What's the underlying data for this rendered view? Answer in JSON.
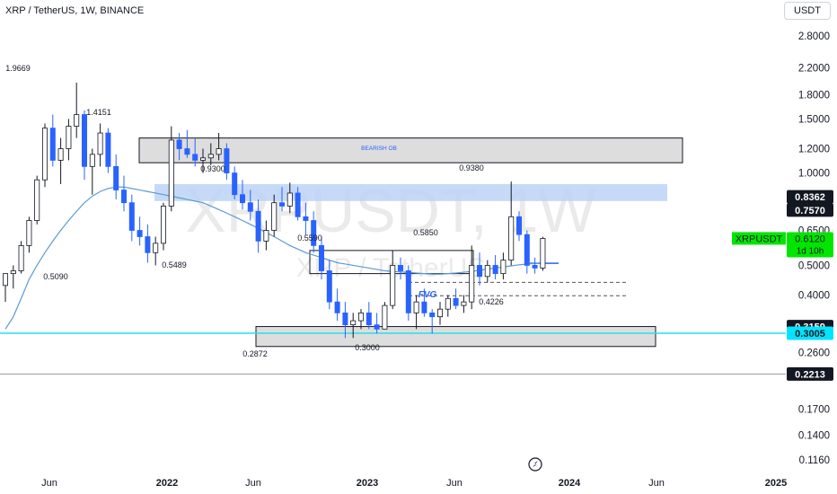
{
  "header": {
    "symbol_title": "XRP / TetherUS, 1W, BINANCE",
    "currency": "USDT"
  },
  "watermark": {
    "ticker": "XRPUSDT, 1W",
    "pair": "XRP / TetherUS"
  },
  "colors": {
    "up": "#ffffff",
    "down": "#2962ff",
    "wick": "#131722",
    "ma_line": "#5b9bd5",
    "zone_fill": "#d9d9d9",
    "blue_zone_fill": "#bcd4f7",
    "cyan_line": "#26e0e8",
    "gray_line": "#9598a1",
    "fvg_text": "#2962ff",
    "price_tag_dark": "#131722",
    "price_tag_green": "#00e600",
    "price_tag_cyan": "#00e5ff",
    "text": "#131722",
    "axis_text": "#131722"
  },
  "chart_data": {
    "type": "candlestick",
    "title": "XRP / TetherUS, 1W, BINANCE",
    "yscale": "log",
    "ylim": [
      0.105,
      3.2
    ],
    "x_axis_labels": [
      "Jun",
      "2022",
      "Jun",
      "2023",
      "Jun",
      "2024",
      "Jun",
      "2025"
    ],
    "y_tick_labels": [
      "2.8000",
      "2.2000",
      "1.8000",
      "1.5000",
      "1.2000",
      "1.0000",
      "0.6500",
      "0.5000",
      "0.4000",
      "0.2600",
      "0.1700",
      "0.1400",
      "0.1160"
    ],
    "price_tags": [
      {
        "value": "0.8362",
        "style": "dark"
      },
      {
        "value": "0.7570",
        "style": "dark"
      },
      {
        "value": "0.3159",
        "style": "dark"
      },
      {
        "value": "0.3005",
        "style": "cyan"
      },
      {
        "value": "0.2213",
        "style": "dark"
      }
    ],
    "current_price": {
      "symbol": "XRPUSDT",
      "value": "0.6120",
      "countdown": "1d 10h"
    },
    "annotations": {
      "swing_labels": [
        "1.9669",
        "1.4151",
        "0.5090",
        "0.9300",
        "0.5489",
        "0.5590",
        "0.2872",
        "0.5850",
        "0.3000",
        "0.9380",
        "0.4226"
      ],
      "zone_labels": [
        "BEARISH OB",
        "FVG"
      ]
    },
    "zones": [
      {
        "label": "BEARISH OB",
        "top": 1.3,
        "bottom": 1.08,
        "style": "gray"
      },
      {
        "label": "",
        "top": 0.92,
        "bottom": 0.81,
        "style": "blue"
      },
      {
        "label": "",
        "top": 0.559,
        "bottom": 0.47,
        "style": "outline"
      },
      {
        "label": "",
        "top": 0.3159,
        "bottom": 0.272,
        "style": "gray"
      }
    ],
    "levels": [
      {
        "value": 0.3005,
        "style": "cyan"
      },
      {
        "value": 0.2213,
        "style": "gray"
      },
      {
        "value": 0.44,
        "style": "dashed"
      },
      {
        "value": 0.398,
        "style": "dashed"
      },
      {
        "value": 0.508,
        "style": "ma"
      }
    ],
    "ma_series": [
      0.31,
      0.34,
      0.39,
      0.45,
      0.5,
      0.55,
      0.6,
      0.65,
      0.7,
      0.75,
      0.8,
      0.84,
      0.87,
      0.89,
      0.9,
      0.9,
      0.89,
      0.88,
      0.87,
      0.86,
      0.85,
      0.84,
      0.83,
      0.82,
      0.81,
      0.8,
      0.78,
      0.76,
      0.74,
      0.72,
      0.7,
      0.68,
      0.66,
      0.64,
      0.62,
      0.6,
      0.58,
      0.565,
      0.55,
      0.54,
      0.53,
      0.52,
      0.51,
      0.505,
      0.5,
      0.495,
      0.49,
      0.485,
      0.48,
      0.478,
      0.476,
      0.474,
      0.472,
      0.47,
      0.468,
      0.468,
      0.47,
      0.472,
      0.475,
      0.478,
      0.482,
      0.486,
      0.49,
      0.494,
      0.498,
      0.502,
      0.505,
      0.507,
      0.508
    ],
    "candles": [
      [
        0.43,
        0.47,
        0.38,
        0.47
      ],
      [
        0.47,
        0.5,
        0.42,
        0.48
      ],
      [
        0.48,
        0.6,
        0.47,
        0.58
      ],
      [
        0.58,
        0.72,
        0.55,
        0.7
      ],
      [
        0.7,
        0.98,
        0.68,
        0.95
      ],
      [
        0.95,
        1.45,
        0.9,
        1.4
      ],
      [
        1.4,
        1.55,
        1.05,
        1.1
      ],
      [
        1.1,
        1.3,
        0.92,
        1.2
      ],
      [
        1.2,
        1.5,
        1.1,
        1.42
      ],
      [
        1.42,
        1.97,
        1.3,
        1.55
      ],
      [
        1.55,
        1.6,
        0.95,
        1.05
      ],
      [
        1.05,
        1.2,
        0.85,
        1.15
      ],
      [
        1.15,
        1.45,
        1.05,
        1.35
      ],
      [
        1.35,
        1.4,
        1.0,
        1.05
      ],
      [
        1.05,
        1.15,
        0.82,
        0.88
      ],
      [
        0.88,
        0.98,
        0.75,
        0.8
      ],
      [
        0.8,
        0.85,
        0.6,
        0.65
      ],
      [
        0.65,
        0.72,
        0.58,
        0.62
      ],
      [
        0.62,
        0.68,
        0.51,
        0.55
      ],
      [
        0.55,
        0.62,
        0.5,
        0.59
      ],
      [
        0.59,
        0.8,
        0.56,
        0.78
      ],
      [
        0.78,
        1.42,
        0.75,
        1.28
      ],
      [
        1.28,
        1.35,
        1.1,
        1.2
      ],
      [
        1.2,
        1.38,
        1.12,
        1.15
      ],
      [
        1.15,
        1.3,
        1.05,
        1.1
      ],
      [
        1.1,
        1.2,
        1.0,
        1.12
      ],
      [
        1.12,
        1.25,
        1.06,
        1.15
      ],
      [
        1.15,
        1.35,
        1.1,
        1.2
      ],
      [
        1.2,
        1.25,
        0.95,
        1.0
      ],
      [
        1.0,
        1.05,
        0.82,
        0.85
      ],
      [
        0.85,
        0.95,
        0.76,
        0.8
      ],
      [
        0.8,
        0.88,
        0.7,
        0.75
      ],
      [
        0.75,
        0.82,
        0.55,
        0.6
      ],
      [
        0.6,
        0.7,
        0.56,
        0.65
      ],
      [
        0.65,
        0.85,
        0.62,
        0.8
      ],
      [
        0.8,
        0.9,
        0.75,
        0.78
      ],
      [
        0.78,
        0.93,
        0.74,
        0.86
      ],
      [
        0.86,
        0.9,
        0.7,
        0.72
      ],
      [
        0.72,
        0.8,
        0.63,
        0.7
      ],
      [
        0.7,
        0.75,
        0.55,
        0.58
      ],
      [
        0.58,
        0.62,
        0.45,
        0.48
      ],
      [
        0.48,
        0.52,
        0.36,
        0.38
      ],
      [
        0.38,
        0.42,
        0.33,
        0.35
      ],
      [
        0.35,
        0.38,
        0.29,
        0.32
      ],
      [
        0.32,
        0.35,
        0.29,
        0.33
      ],
      [
        0.33,
        0.36,
        0.31,
        0.35
      ],
      [
        0.35,
        0.38,
        0.31,
        0.32
      ],
      [
        0.32,
        0.35,
        0.3,
        0.31
      ],
      [
        0.31,
        0.38,
        0.31,
        0.37
      ],
      [
        0.37,
        0.559,
        0.36,
        0.5
      ],
      [
        0.5,
        0.53,
        0.45,
        0.48
      ],
      [
        0.48,
        0.5,
        0.33,
        0.35
      ],
      [
        0.35,
        0.4,
        0.31,
        0.38
      ],
      [
        0.38,
        0.42,
        0.34,
        0.35
      ],
      [
        0.35,
        0.36,
        0.3,
        0.34
      ],
      [
        0.34,
        0.38,
        0.32,
        0.36
      ],
      [
        0.36,
        0.4,
        0.34,
        0.39
      ],
      [
        0.39,
        0.42,
        0.36,
        0.37
      ],
      [
        0.37,
        0.4,
        0.35,
        0.38
      ],
      [
        0.38,
        0.58,
        0.36,
        0.5
      ],
      [
        0.5,
        0.55,
        0.43,
        0.46
      ],
      [
        0.46,
        0.52,
        0.44,
        0.5
      ],
      [
        0.5,
        0.54,
        0.45,
        0.47
      ],
      [
        0.47,
        0.55,
        0.45,
        0.52
      ],
      [
        0.52,
        0.938,
        0.5,
        0.72
      ],
      [
        0.72,
        0.75,
        0.6,
        0.63
      ],
      [
        0.63,
        0.65,
        0.47,
        0.5
      ],
      [
        0.5,
        0.53,
        0.47,
        0.49
      ],
      [
        0.49,
        0.62,
        0.48,
        0.612
      ]
    ]
  }
}
